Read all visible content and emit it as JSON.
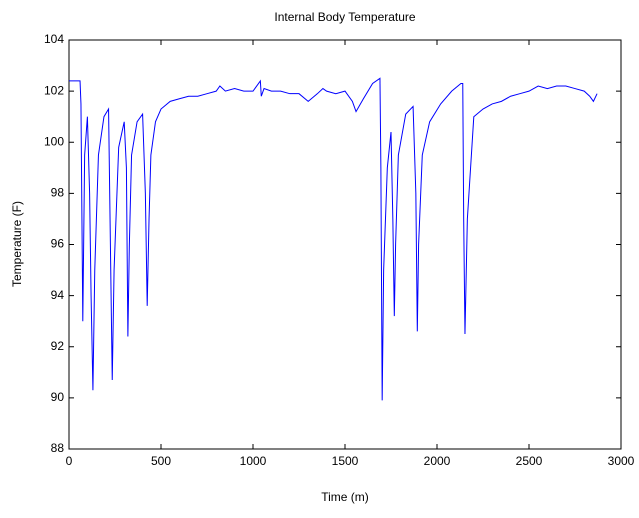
{
  "chart_data": {
    "type": "line",
    "title": "Internal Body Temperature",
    "x_label": "Time (m)",
    "y_label": "Temperature (F)",
    "x": [
      0,
      60,
      65,
      75,
      85,
      100,
      112,
      120,
      130,
      140,
      160,
      190,
      215,
      225,
      235,
      245,
      270,
      300,
      312,
      320,
      328,
      340,
      370,
      400,
      415,
      425,
      435,
      445,
      470,
      500,
      550,
      600,
      650,
      700,
      750,
      800,
      820,
      850,
      900,
      950,
      1000,
      1040,
      1045,
      1060,
      1100,
      1150,
      1200,
      1250,
      1300,
      1350,
      1380,
      1400,
      1450,
      1500,
      1540,
      1560,
      1600,
      1650,
      1690,
      1695,
      1702,
      1710,
      1730,
      1750,
      1760,
      1768,
      1775,
      1790,
      1830,
      1870,
      1885,
      1893,
      1900,
      1920,
      1960,
      2020,
      2080,
      2130,
      2140,
      2145,
      2152,
      2165,
      2200,
      2250,
      2300,
      2350,
      2400,
      2450,
      2500,
      2550,
      2600,
      2650,
      2700,
      2750,
      2800,
      2830,
      2850,
      2870
    ],
    "values": [
      102.4,
      102.4,
      101.5,
      93.0,
      99.5,
      101.0,
      98,
      94,
      90.3,
      95,
      99.5,
      101.0,
      101.3,
      96,
      90.7,
      95,
      99.8,
      100.8,
      99,
      92.4,
      96,
      99.5,
      100.8,
      101.1,
      98,
      93.6,
      97,
      99.5,
      100.8,
      101.3,
      101.6,
      101.7,
      101.8,
      101.8,
      101.9,
      102.0,
      102.2,
      102.0,
      102.1,
      102.0,
      102.0,
      102.4,
      101.8,
      102.1,
      102.0,
      102.0,
      101.9,
      101.9,
      101.6,
      101.9,
      102.1,
      102.0,
      101.9,
      102.0,
      101.6,
      101.2,
      101.7,
      102.3,
      102.5,
      99,
      89.9,
      95,
      99,
      100.4,
      97,
      93.2,
      96,
      99.5,
      101.1,
      101.4,
      98,
      92.6,
      96,
      99.5,
      100.8,
      101.5,
      102.0,
      102.3,
      102.3,
      97,
      92.5,
      97,
      101.0,
      101.3,
      101.5,
      101.6,
      101.8,
      101.9,
      102.0,
      102.2,
      102.1,
      102.2,
      102.2,
      102.1,
      102.0,
      101.8,
      101.6,
      101.9
    ],
    "color": "#0000ff",
    "xlim": [
      0,
      3000
    ],
    "xticks": [
      0,
      500,
      1000,
      1500,
      2000,
      2500,
      3000
    ],
    "ylim": [
      88,
      104
    ],
    "yticks": [
      88,
      90,
      92,
      94,
      96,
      98,
      100,
      102,
      104
    ]
  }
}
